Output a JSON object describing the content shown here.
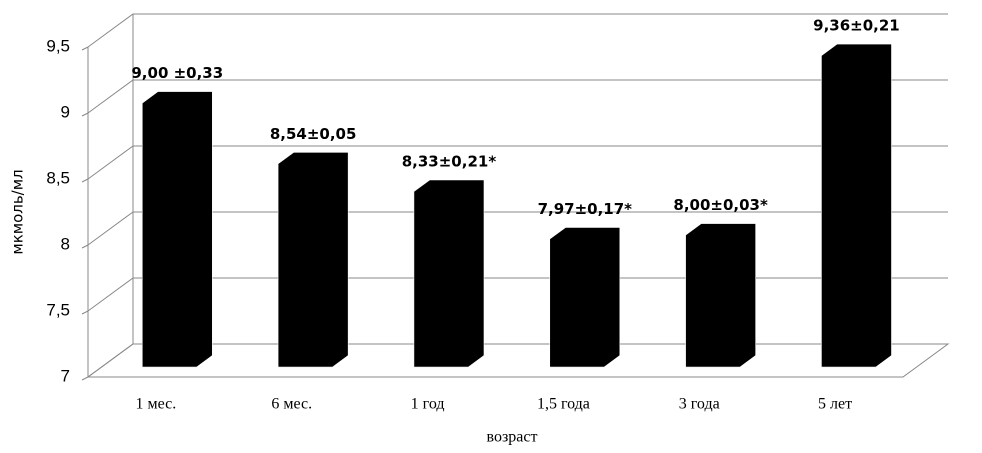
{
  "chart_data": {
    "type": "bar3d",
    "x_label": "возраст",
    "y_label": "мкмоль/мл",
    "categories": [
      "1 мес.",
      "6 мес.",
      "1 год",
      "1,5 года",
      "3 года",
      "5 лет"
    ],
    "values": [
      9.0,
      8.54,
      8.33,
      7.97,
      8.0,
      9.36
    ],
    "value_labels": [
      "9,00 ±0,33",
      "8,54±0,05",
      "8,33±0,21*",
      "7,97±0,17*",
      "8,00±0,03*",
      "9,36±0,21"
    ],
    "color": "#000000",
    "ylim": [
      7,
      9.5
    ],
    "yticks": [
      7,
      {
        "value": 7.5,
        "label": "7,5"
      },
      8,
      {
        "value": 8.5,
        "label": "8,5"
      },
      9,
      {
        "value": 9.5,
        "label": "9,5"
      }
    ],
    "grid": true
  }
}
